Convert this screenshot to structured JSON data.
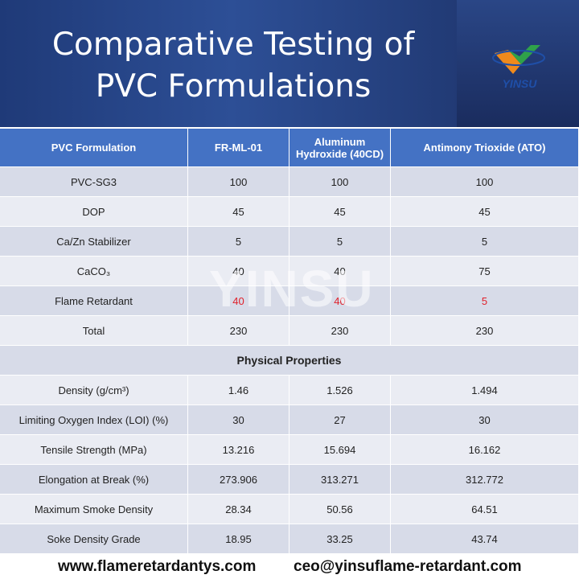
{
  "header": {
    "title": "Comparative Testing of PVC Formulations",
    "logo_text": "YINSU"
  },
  "watermark": "YINSU",
  "table": {
    "columns": [
      "PVC Formulation",
      "FR-ML-01",
      "Aluminum Hydroxide (40CD)",
      "Antimony Trioxide (ATO)"
    ],
    "composition_rows": [
      [
        "PVC-SG3",
        "100",
        "100",
        "100"
      ],
      [
        "DOP",
        "45",
        "45",
        "45"
      ],
      [
        "Ca/Zn Stabilizer",
        "5",
        "5",
        "5"
      ],
      [
        "CaCO₃",
        "40",
        "40",
        "75"
      ],
      [
        "Flame Retardant",
        "40",
        "40",
        "5"
      ],
      [
        "Total",
        "230",
        "230",
        "230"
      ]
    ],
    "section_title": "Physical Properties",
    "property_rows": [
      [
        "Density (g/cm³)",
        "1.46",
        "1.526",
        "1.494"
      ],
      [
        "Limiting Oxygen Index (LOI) (%)",
        "30",
        "27",
        "30"
      ],
      [
        "Tensile Strength (MPa)",
        "13.216",
        "15.694",
        "16.162"
      ],
      [
        "Elongation at Break (%)",
        "273.906",
        "313.271",
        "312.772"
      ],
      [
        "Maximum Smoke Density",
        "28.34",
        "50.56",
        "64.51"
      ],
      [
        "Soke Density Grade",
        "18.95",
        "33.25",
        "43.74"
      ]
    ]
  },
  "footer": {
    "website": "www.flameretardantys.com",
    "email": "ceo@yinsuflame-retardant.com"
  }
}
